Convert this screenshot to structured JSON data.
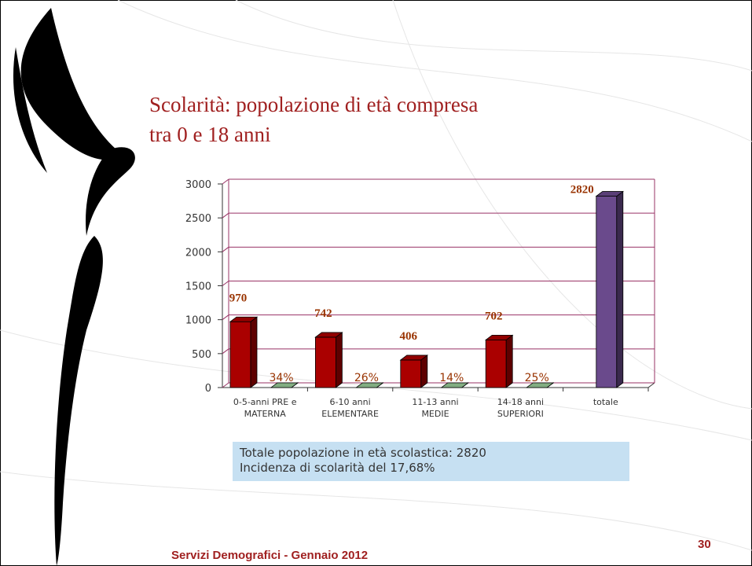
{
  "title_lines": [
    "Scolarità: popolazione di età compresa",
    "tra 0 e 18 anni"
  ],
  "chart_data": {
    "type": "bar3d",
    "categories": [
      [
        "0-5-anni PRE e",
        "MATERNA"
      ],
      [
        "6-10 anni",
        "ELEMENTARE"
      ],
      [
        "11-13 anni",
        "MEDIE"
      ],
      [
        "14-18 anni",
        "SUPERIORI"
      ],
      [
        "totale"
      ]
    ],
    "series": [
      {
        "colors": [
          "#aa0000",
          "#aa0000",
          "#aa0000",
          "#aa0000",
          "#6a4a8c"
        ],
        "values": [
          970,
          742,
          406,
          702,
          2820
        ]
      },
      {
        "color": "#99cc99",
        "values": [
          0.34,
          0.26,
          0.14,
          0.25,
          null
        ],
        "value_labels": [
          "34%",
          "26%",
          "14%",
          "25%",
          null
        ]
      }
    ],
    "ylim": [
      0,
      3000
    ],
    "yticks": [
      0,
      500,
      1000,
      1500,
      2000,
      2500,
      3000
    ],
    "grid": true
  },
  "info_box": [
    "Totale popolazione in età scolastica:  2820",
    "Incidenza di scolarità del 17,68%"
  ],
  "footer": "Servizi Demografici - Gennaio 2012",
  "page_number": "30"
}
